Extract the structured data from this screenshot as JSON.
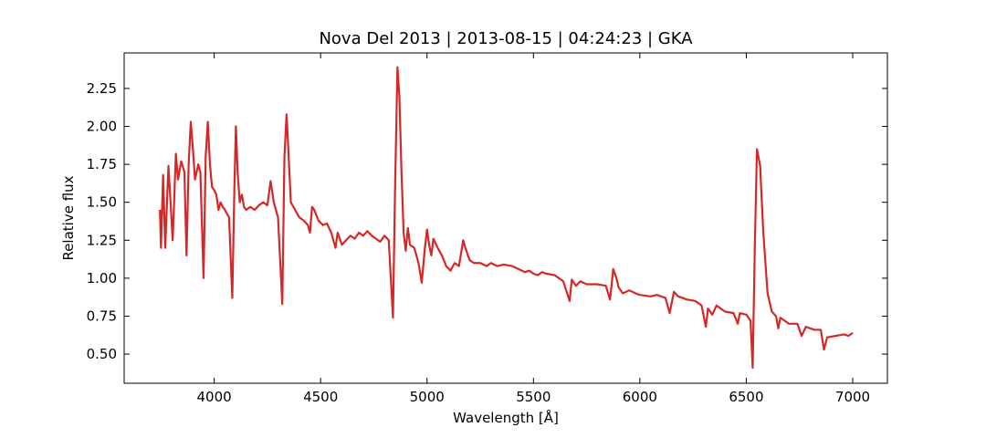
{
  "chart_data": {
    "type": "line",
    "title": "Nova Del 2013 | 2013-08-15 | 04:24:23 | GKA",
    "x_label": "Wavelength [Å]",
    "y_label": "Relative flux",
    "xlim": [
      3577,
      7163
    ],
    "ylim": [
      0.308,
      2.484
    ],
    "xticks": [
      4000,
      4500,
      5000,
      5500,
      6000,
      6500,
      7000
    ],
    "yticks": [
      {
        "value": 0.5,
        "label": "0.50"
      },
      {
        "value": 0.75,
        "label": "0.75"
      },
      {
        "value": 1.0,
        "label": "1.00"
      },
      {
        "value": 1.25,
        "label": "1.25"
      },
      {
        "value": 1.5,
        "label": "1.50"
      },
      {
        "value": 1.75,
        "label": "1.75"
      },
      {
        "value": 2.0,
        "label": "2.00"
      },
      {
        "value": 2.25,
        "label": "2.25"
      }
    ],
    "color": "#d62728",
    "x": [
      3745,
      3750,
      3760,
      3770,
      3785,
      3795,
      3805,
      3820,
      3830,
      3845,
      3860,
      3870,
      3880,
      3890,
      3900,
      3910,
      3925,
      3935,
      3950,
      3960,
      3970,
      3980,
      3990,
      4000,
      4010,
      4020,
      4030,
      4040,
      4050,
      4070,
      4085,
      4095,
      4102,
      4110,
      4120,
      4130,
      4140,
      4150,
      4170,
      4190,
      4210,
      4230,
      4250,
      4265,
      4280,
      4300,
      4320,
      4330,
      4340,
      4350,
      4360,
      4380,
      4400,
      4420,
      4440,
      4450,
      4460,
      4470,
      4490,
      4510,
      4530,
      4550,
      4570,
      4580,
      4600,
      4620,
      4640,
      4660,
      4680,
      4700,
      4720,
      4740,
      4760,
      4780,
      4800,
      4820,
      4840,
      4850,
      4861,
      4870,
      4880,
      4890,
      4900,
      4910,
      4920,
      4940,
      4960,
      4975,
      4990,
      5000,
      5010,
      5020,
      5030,
      5050,
      5070,
      5090,
      5110,
      5130,
      5150,
      5170,
      5180,
      5200,
      5220,
      5250,
      5280,
      5300,
      5330,
      5360,
      5400,
      5430,
      5460,
      5480,
      5500,
      5520,
      5540,
      5560,
      5600,
      5640,
      5670,
      5680,
      5700,
      5720,
      5750,
      5800,
      5840,
      5860,
      5875,
      5890,
      5900,
      5920,
      5950,
      5980,
      6000,
      6050,
      6080,
      6120,
      6140,
      6160,
      6180,
      6220,
      6260,
      6290,
      6310,
      6320,
      6340,
      6360,
      6400,
      6440,
      6460,
      6470,
      6500,
      6520,
      6530,
      6540,
      6550,
      6565,
      6580,
      6600,
      6620,
      6640,
      6650,
      6660,
      6700,
      6740,
      6760,
      6780,
      6820,
      6850,
      6865,
      6880,
      6920,
      6960,
      6980,
      7000
    ],
    "values": [
      1.45,
      1.2,
      1.68,
      1.2,
      1.74,
      1.5,
      1.25,
      1.82,
      1.65,
      1.77,
      1.7,
      1.15,
      1.75,
      2.03,
      1.85,
      1.65,
      1.75,
      1.7,
      1.0,
      1.8,
      2.03,
      1.75,
      1.6,
      1.58,
      1.55,
      1.45,
      1.5,
      1.47,
      1.45,
      1.4,
      0.87,
      1.6,
      2.0,
      1.7,
      1.5,
      1.55,
      1.47,
      1.45,
      1.47,
      1.45,
      1.48,
      1.5,
      1.48,
      1.64,
      1.5,
      1.4,
      0.83,
      1.8,
      2.08,
      1.8,
      1.5,
      1.45,
      1.4,
      1.38,
      1.35,
      1.3,
      1.47,
      1.45,
      1.38,
      1.35,
      1.36,
      1.3,
      1.2,
      1.3,
      1.22,
      1.25,
      1.28,
      1.26,
      1.3,
      1.28,
      1.31,
      1.28,
      1.26,
      1.24,
      1.28,
      1.25,
      0.74,
      1.6,
      2.39,
      2.2,
      1.7,
      1.3,
      1.18,
      1.33,
      1.22,
      1.2,
      1.1,
      0.97,
      1.2,
      1.32,
      1.22,
      1.15,
      1.26,
      1.2,
      1.15,
      1.08,
      1.05,
      1.1,
      1.08,
      1.25,
      1.2,
      1.12,
      1.1,
      1.1,
      1.08,
      1.1,
      1.08,
      1.09,
      1.08,
      1.06,
      1.04,
      1.05,
      1.03,
      1.02,
      1.04,
      1.03,
      1.02,
      0.98,
      0.85,
      0.99,
      0.95,
      0.98,
      0.96,
      0.96,
      0.95,
      0.86,
      1.06,
      1.0,
      0.94,
      0.9,
      0.92,
      0.9,
      0.89,
      0.88,
      0.89,
      0.87,
      0.77,
      0.91,
      0.88,
      0.86,
      0.85,
      0.82,
      0.68,
      0.8,
      0.76,
      0.82,
      0.78,
      0.77,
      0.7,
      0.77,
      0.76,
      0.72,
      0.41,
      1.2,
      1.85,
      1.74,
      1.3,
      0.9,
      0.78,
      0.75,
      0.67,
      0.74,
      0.7,
      0.7,
      0.62,
      0.68,
      0.66,
      0.66,
      0.53,
      0.61,
      0.62,
      0.63,
      0.62,
      0.64
    ]
  }
}
